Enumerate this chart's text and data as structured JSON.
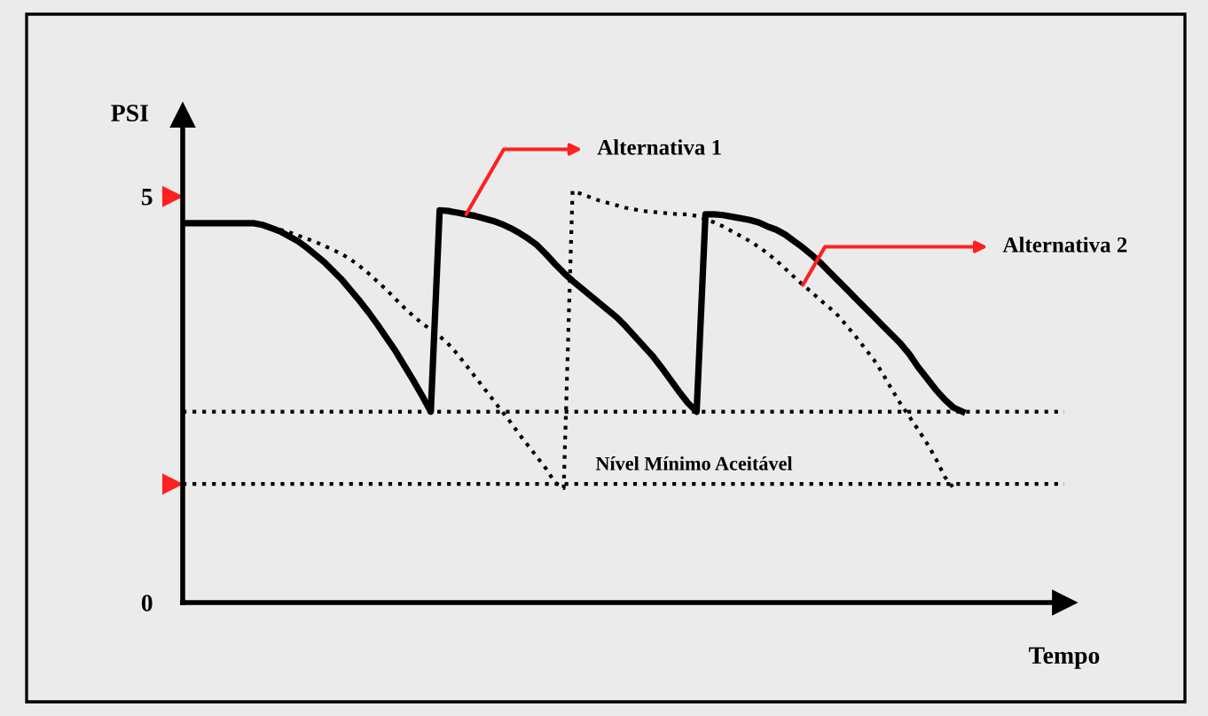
{
  "chart_data": {
    "type": "line",
    "ylabel": "PSI",
    "xlabel": "Tempo",
    "categories": [
      null,
      null,
      null,
      null,
      null,
      null,
      null,
      null,
      null,
      null,
      null,
      null,
      null,
      null,
      null,
      null,
      null,
      null,
      null,
      null,
      null,
      null,
      null,
      null,
      null,
      null,
      null,
      null,
      null,
      null,
      null,
      null,
      null,
      null,
      null,
      null,
      null,
      null,
      null,
      null,
      null,
      null,
      null,
      null,
      null,
      null,
      null,
      null,
      null,
      null,
      null,
      null,
      null,
      null,
      null,
      null,
      null,
      null,
      null,
      null,
      null,
      null,
      null,
      null,
      null,
      null,
      null,
      null,
      null,
      null,
      null,
      null,
      null,
      null,
      null,
      null,
      null,
      null,
      null,
      null,
      null,
      null,
      null,
      null,
      null,
      null,
      null,
      null,
      null,
      null,
      null,
      null,
      null,
      null,
      null,
      null,
      null,
      null,
      null,
      null
    ],
    "ylim": [
      0,
      6
    ],
    "yticks": [
      0,
      5
    ],
    "grid": false,
    "legend": false,
    "marker": "none",
    "series": [
      {
        "name": "Alternativa 1",
        "color": "#000000",
        "line_style": "solid",
        "values": [
          4.67,
          4.67,
          4.67,
          4.67,
          4.67,
          4.67,
          4.67,
          4.67,
          4.67,
          4.65,
          4.61,
          4.57,
          4.51,
          4.45,
          4.37,
          4.28,
          4.19,
          4.08,
          3.97,
          3.84,
          3.71,
          3.57,
          3.42,
          3.26,
          3.1,
          2.92,
          2.74,
          2.55,
          2.35,
          4.83,
          4.82,
          4.8,
          4.78,
          4.76,
          4.73,
          4.7,
          4.66,
          4.61,
          4.55,
          4.48,
          4.4,
          4.29,
          4.17,
          4.06,
          3.96,
          3.87,
          3.78,
          3.69,
          3.6,
          3.51,
          3.4,
          3.28,
          3.16,
          3.04,
          2.9,
          2.75,
          2.6,
          2.46,
          2.35,
          4.78,
          4.78,
          4.77,
          4.75,
          4.73,
          4.71,
          4.68,
          4.63,
          4.59,
          4.53,
          4.45,
          4.37,
          4.28,
          4.18,
          4.07,
          3.96,
          3.85,
          3.74,
          3.63,
          3.52,
          3.41,
          3.3,
          3.19,
          3.06,
          2.9,
          2.76,
          2.62,
          2.5,
          2.4,
          2.35,
          null,
          null,
          null,
          null,
          null,
          null,
          null,
          null,
          null,
          null,
          null
        ]
      },
      {
        "name": "Alternativa 2",
        "color": "#000000",
        "line_style": "dotted",
        "values": [
          4.67,
          4.67,
          4.67,
          4.67,
          4.67,
          4.67,
          4.67,
          4.67,
          4.67,
          4.65,
          4.62,
          4.59,
          4.56,
          4.52,
          4.48,
          4.44,
          4.39,
          4.34,
          4.29,
          4.22,
          4.14,
          4.05,
          3.95,
          3.85,
          3.74,
          3.63,
          3.53,
          3.44,
          3.36,
          3.28,
          3.18,
          3.06,
          2.92,
          2.78,
          2.64,
          2.5,
          2.36,
          2.22,
          2.07,
          1.93,
          1.79,
          1.65,
          1.48,
          1.41,
          5.07,
          5.03,
          4.99,
          4.95,
          4.92,
          4.89,
          4.86,
          4.84,
          4.82,
          4.81,
          4.8,
          4.79,
          4.78,
          4.78,
          4.76,
          4.72,
          4.68,
          4.63,
          4.57,
          4.51,
          4.45,
          4.38,
          4.3,
          4.21,
          4.11,
          4.01,
          3.91,
          3.82,
          3.72,
          3.63,
          3.53,
          3.4,
          3.27,
          3.13,
          2.99,
          2.82,
          2.63,
          2.45,
          2.29,
          2.13,
          1.96,
          1.77,
          1.55,
          1.41,
          null,
          null,
          null,
          null,
          null,
          null,
          null,
          null,
          null,
          null,
          null,
          null
        ]
      }
    ],
    "ref_lines": [
      {
        "axis": "y",
        "value": 2.35,
        "label": null,
        "color": "#000000",
        "line_style": "dotted"
      },
      {
        "axis": "y",
        "value": 1.46,
        "label": "Nível Mínimo Aceitável",
        "color": "#000000",
        "line_style": "dotted"
      }
    ]
  }
}
